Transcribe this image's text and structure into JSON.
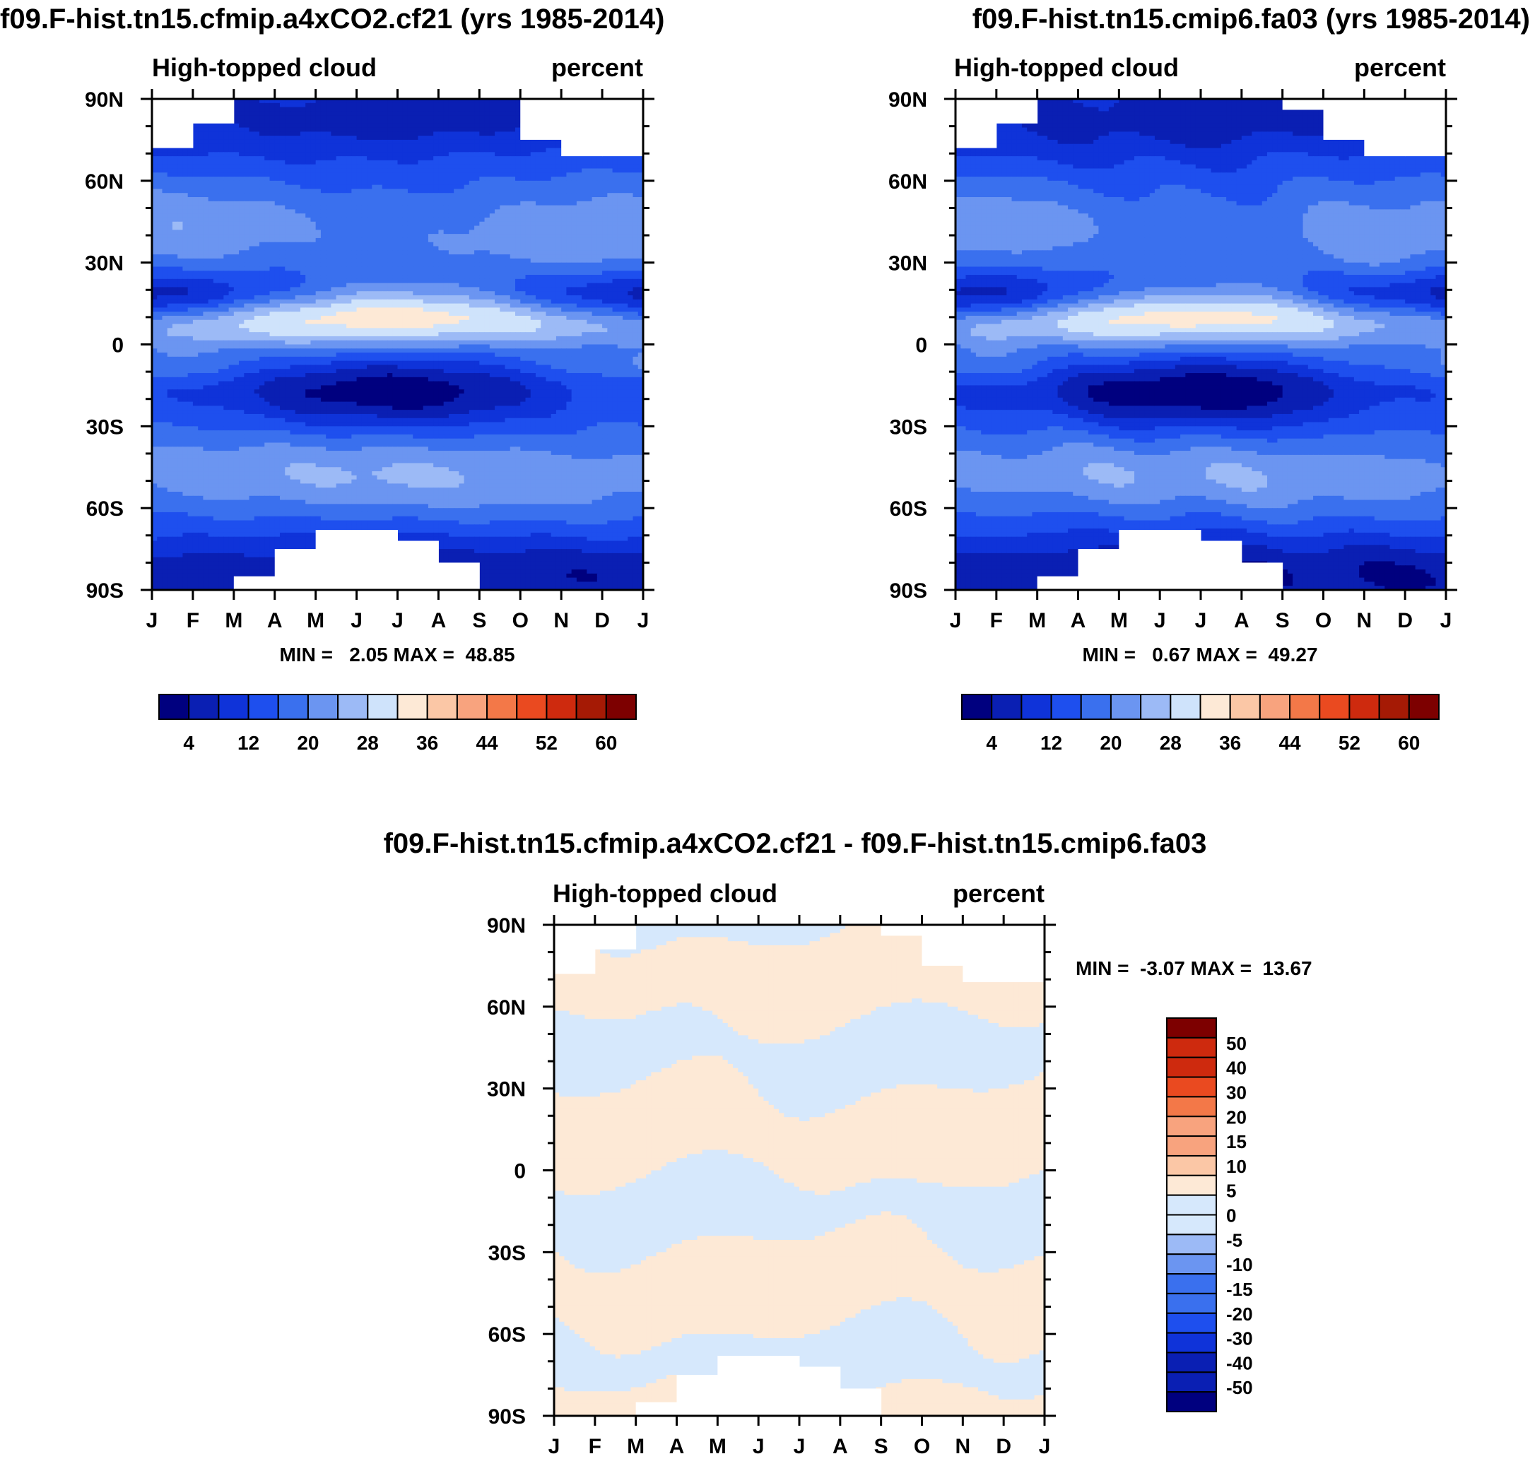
{
  "figure": {
    "variable": "High-topped cloud",
    "units": "percent"
  },
  "colors": {
    "abs_palette": [
      "#00007f",
      "#0a1fb3",
      "#0f33d9",
      "#1e4fee",
      "#3a70ee",
      "#6b95f1",
      "#9cbaf6",
      "#cfe3fb",
      "#fde9d6",
      "#fbc7a6",
      "#f8a37e",
      "#f37848",
      "#ea4a20",
      "#ce2a0e",
      "#a51a05",
      "#7d0000"
    ],
    "diff_palette": [
      "#00007f",
      "#0a1fb3",
      "#0f33d9",
      "#1e4fee",
      "#3a70ee",
      "#6b95f1",
      "#9cbaf6",
      "#d6e8fc",
      "#fde9d6",
      "#fbc7a6",
      "#f8a37e",
      "#f37848",
      "#ea4a20",
      "#ce2a0e",
      "#7d0000"
    ],
    "missing": "#ffffff"
  },
  "chart_data": [
    {
      "type": "heatmap",
      "id": "panel-a",
      "title": "f09.F-hist.tn15.cfmip.a4xCO2.cf21 (yrs 1985-2014)",
      "left_string": "High-topped cloud",
      "right_string": "percent",
      "x_tick_labels": [
        "J",
        "F",
        "M",
        "A",
        "M",
        "J",
        "J",
        "A",
        "S",
        "O",
        "N",
        "D",
        "J"
      ],
      "y_tick_labels": [
        "90N",
        "60N",
        "30N",
        "0",
        "30S",
        "60S",
        "90S"
      ],
      "xlim": [
        0,
        12
      ],
      "ylim": [
        -90,
        90
      ],
      "min_max_text": "MIN =   2.05 MAX =  48.85",
      "min": 2.05,
      "max": 48.85,
      "colorbar_labels": [
        "4",
        "12",
        "20",
        "28",
        "36",
        "44",
        "52",
        "60"
      ],
      "colorbar_levels": [
        0,
        4,
        8,
        12,
        16,
        20,
        24,
        28,
        32,
        36,
        40,
        44,
        48,
        52,
        56,
        60,
        64
      ],
      "missing_north": [
        [
          0,
          72
        ],
        [
          1,
          81
        ],
        [
          2,
          90
        ],
        [
          3,
          90
        ],
        [
          4,
          90
        ],
        [
          5,
          90
        ],
        [
          6,
          90
        ],
        [
          7,
          90
        ],
        [
          8,
          90
        ],
        [
          9,
          75
        ],
        [
          10,
          69
        ],
        [
          11,
          69
        ]
      ],
      "missing_south": [
        [
          0,
          -90
        ],
        [
          1,
          -90
        ],
        [
          2,
          -85
        ],
        [
          3,
          -75
        ],
        [
          4,
          -68
        ],
        [
          5,
          -68
        ],
        [
          6,
          -72
        ],
        [
          7,
          -80
        ],
        [
          8,
          -90
        ],
        [
          9,
          -90
        ],
        [
          10,
          -90
        ],
        [
          11,
          -90
        ]
      ]
    },
    {
      "type": "heatmap",
      "id": "panel-b",
      "title": "f09.F-hist.tn15.cmip6.fa03 (yrs 1985-2014)",
      "left_string": "High-topped cloud",
      "right_string": "percent",
      "x_tick_labels": [
        "J",
        "F",
        "M",
        "A",
        "M",
        "J",
        "J",
        "A",
        "S",
        "O",
        "N",
        "D",
        "J"
      ],
      "y_tick_labels": [
        "90N",
        "60N",
        "30N",
        "0",
        "30S",
        "60S",
        "90S"
      ],
      "xlim": [
        0,
        12
      ],
      "ylim": [
        -90,
        90
      ],
      "min_max_text": "MIN =   0.67 MAX =  49.27",
      "min": 0.67,
      "max": 49.27,
      "colorbar_labels": [
        "4",
        "12",
        "20",
        "28",
        "36",
        "44",
        "52",
        "60"
      ],
      "colorbar_levels": [
        0,
        4,
        8,
        12,
        16,
        20,
        24,
        28,
        32,
        36,
        40,
        44,
        48,
        52,
        56,
        60,
        64
      ],
      "missing_north": [
        [
          0,
          72
        ],
        [
          1,
          81
        ],
        [
          2,
          90
        ],
        [
          3,
          90
        ],
        [
          4,
          90
        ],
        [
          5,
          90
        ],
        [
          6,
          90
        ],
        [
          7,
          90
        ],
        [
          8,
          86
        ],
        [
          9,
          75
        ],
        [
          10,
          69
        ],
        [
          11,
          69
        ]
      ],
      "missing_south": [
        [
          0,
          -90
        ],
        [
          1,
          -90
        ],
        [
          2,
          -85
        ],
        [
          3,
          -75
        ],
        [
          4,
          -68
        ],
        [
          5,
          -68
        ],
        [
          6,
          -72
        ],
        [
          7,
          -80
        ],
        [
          8,
          -90
        ],
        [
          9,
          -90
        ],
        [
          10,
          -90
        ],
        [
          11,
          -90
        ]
      ]
    },
    {
      "type": "heatmap",
      "id": "panel-c",
      "title": "f09.F-hist.tn15.cfmip.a4xCO2.cf21 - f09.F-hist.tn15.cmip6.fa03",
      "left_string": "High-topped cloud",
      "right_string": "percent",
      "x_tick_labels": [
        "J",
        "F",
        "M",
        "A",
        "M",
        "J",
        "J",
        "A",
        "S",
        "O",
        "N",
        "D",
        "J"
      ],
      "y_tick_labels": [
        "90N",
        "60N",
        "30N",
        "0",
        "30S",
        "60S",
        "90S"
      ],
      "xlim": [
        0,
        12
      ],
      "ylim": [
        -90,
        90
      ],
      "min_max_text": "MIN =  -3.07 MAX =  13.67",
      "min": -3.07,
      "max": 13.67,
      "colorbar_labels": [
        "50",
        "40",
        "30",
        "20",
        "15",
        "10",
        "5",
        "0",
        "-5",
        "-10",
        "-15",
        "-20",
        "-30",
        "-40",
        "-50"
      ],
      "missing_north": [
        [
          0,
          72
        ],
        [
          1,
          81
        ],
        [
          2,
          90
        ],
        [
          3,
          90
        ],
        [
          4,
          90
        ],
        [
          5,
          90
        ],
        [
          6,
          90
        ],
        [
          7,
          90
        ],
        [
          8,
          86
        ],
        [
          9,
          75
        ],
        [
          10,
          69
        ],
        [
          11,
          69
        ]
      ],
      "missing_south": [
        [
          0,
          -90
        ],
        [
          1,
          -90
        ],
        [
          2,
          -85
        ],
        [
          3,
          -75
        ],
        [
          4,
          -68
        ],
        [
          5,
          -68
        ],
        [
          6,
          -72
        ],
        [
          7,
          -80
        ],
        [
          8,
          -90
        ],
        [
          9,
          -90
        ],
        [
          10,
          -90
        ],
        [
          11,
          -90
        ]
      ]
    }
  ]
}
